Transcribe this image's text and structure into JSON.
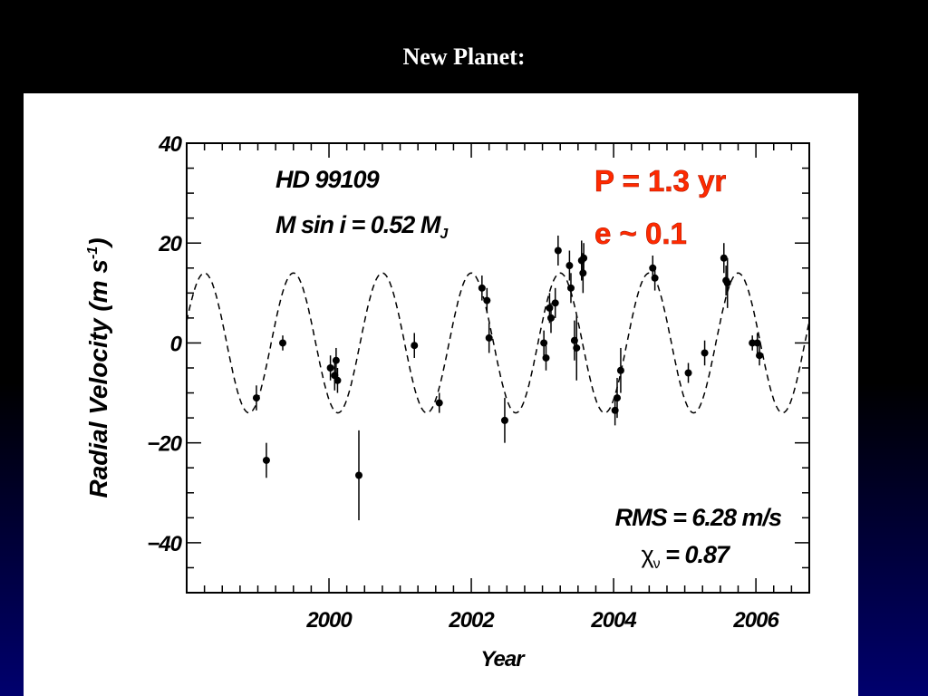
{
  "slide": {
    "title": "New Planet:"
  },
  "chart_data": {
    "type": "scatter",
    "star": "HD 99109",
    "msini_prefix": "M sin i = 0.52 M",
    "msini_sub": "J",
    "period_text": "P = 1.3 yr",
    "ecc_text": "e ~ 0.1",
    "rms_text": "RMS = 6.28 m/s",
    "chi_prefix": "χ",
    "chi_sub": "ν",
    "chi_suffix": " = 0.87",
    "xlabel": "Year",
    "ylabel_prefix": "Radial Velocity (m s",
    "ylabel_sup": "-1",
    "ylabel_suffix": ")",
    "xlim": [
      1998.0,
      2006.75
    ],
    "ylim": [
      -50,
      40
    ],
    "xticks": [
      2000,
      2002,
      2004,
      2006
    ],
    "xtick_labels": [
      "2000",
      "2002",
      "2004",
      "2006"
    ],
    "yticks": [
      -40,
      -20,
      0,
      20,
      40
    ],
    "ytick_labels": [
      "−40",
      "−20",
      "0",
      "20",
      "40"
    ],
    "fit": {
      "style": "dashed",
      "amplitude": 14,
      "period_years": 1.25,
      "phase_peak_year": 2002.0
    },
    "points": [
      {
        "x": 1998.98,
        "y": -11,
        "err": 2.5
      },
      {
        "x": 1999.12,
        "y": -23.5,
        "err": 3.5
      },
      {
        "x": 1999.35,
        "y": 0,
        "err": 1.5
      },
      {
        "x": 2000.02,
        "y": -5,
        "err": 2.5
      },
      {
        "x": 2000.08,
        "y": -6.5,
        "err": 3
      },
      {
        "x": 2000.1,
        "y": -3.5,
        "err": 2.5
      },
      {
        "x": 2000.12,
        "y": -7.5,
        "err": 2.5
      },
      {
        "x": 2000.42,
        "y": -26.5,
        "err": 9
      },
      {
        "x": 2001.2,
        "y": -0.5,
        "err": 2.5
      },
      {
        "x": 2001.55,
        "y": -12,
        "err": 2
      },
      {
        "x": 2002.15,
        "y": 11,
        "err": 2.5
      },
      {
        "x": 2002.22,
        "y": 8.5,
        "err": 2.5
      },
      {
        "x": 2002.25,
        "y": 1,
        "err": 3
      },
      {
        "x": 2002.47,
        "y": -15.5,
        "err": 4.5
      },
      {
        "x": 2003.02,
        "y": 0,
        "err": 2.5
      },
      {
        "x": 2003.05,
        "y": -3,
        "err": 2.5
      },
      {
        "x": 2003.1,
        "y": 7,
        "err": 3
      },
      {
        "x": 2003.12,
        "y": 5,
        "err": 3
      },
      {
        "x": 2003.18,
        "y": 8,
        "err": 3
      },
      {
        "x": 2003.22,
        "y": 18.5,
        "err": 3
      },
      {
        "x": 2003.38,
        "y": 15.5,
        "err": 3
      },
      {
        "x": 2003.4,
        "y": 11,
        "err": 3
      },
      {
        "x": 2003.45,
        "y": 0.5,
        "err": 4
      },
      {
        "x": 2003.48,
        "y": -1,
        "err": 6.5
      },
      {
        "x": 2003.55,
        "y": 16.5,
        "err": 4
      },
      {
        "x": 2003.57,
        "y": 14,
        "err": 4
      },
      {
        "x": 2003.58,
        "y": 17,
        "err": 3
      },
      {
        "x": 2004.02,
        "y": -13.5,
        "err": 3
      },
      {
        "x": 2004.05,
        "y": -11,
        "err": 4
      },
      {
        "x": 2004.1,
        "y": -5.5,
        "err": 4.5
      },
      {
        "x": 2004.55,
        "y": 15,
        "err": 2.5
      },
      {
        "x": 2004.58,
        "y": 13,
        "err": 2.5
      },
      {
        "x": 2005.05,
        "y": -6,
        "err": 2
      },
      {
        "x": 2005.28,
        "y": -2,
        "err": 2.5
      },
      {
        "x": 2005.55,
        "y": 17,
        "err": 3
      },
      {
        "x": 2005.58,
        "y": 12.5,
        "err": 3
      },
      {
        "x": 2005.6,
        "y": 12,
        "err": 5
      },
      {
        "x": 2005.95,
        "y": 0,
        "err": 1.5
      },
      {
        "x": 2006.02,
        "y": 0,
        "err": 2
      },
      {
        "x": 2006.05,
        "y": -2.5,
        "err": 2
      }
    ]
  }
}
